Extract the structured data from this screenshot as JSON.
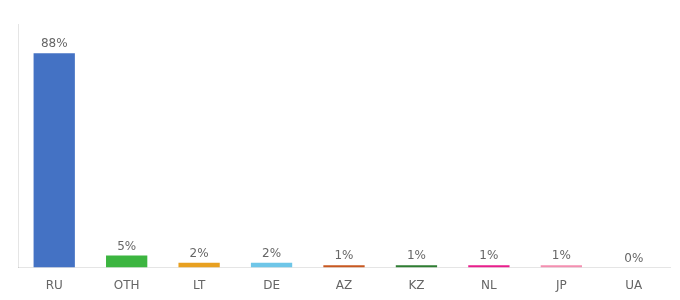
{
  "chart_data": {
    "type": "bar",
    "categories": [
      "RU",
      "OTH",
      "LT",
      "DE",
      "AZ",
      "KZ",
      "NL",
      "JP",
      "UA"
    ],
    "values": [
      88,
      5,
      2,
      2,
      1,
      1,
      1,
      1,
      0
    ],
    "value_labels": [
      "88%",
      "5%",
      "2%",
      "2%",
      "1%",
      "1%",
      "1%",
      "1%",
      "0%"
    ],
    "data_labels": true,
    "colors": [
      "#4472C4",
      "#3CB540",
      "#E8A020",
      "#6EC6E8",
      "#C85820",
      "#2E7D32",
      "#E91E8C",
      "#F48FB1",
      "#F48FB1"
    ],
    "ylim": [
      0,
      100
    ],
    "tick_labels": "x",
    "grid": false
  }
}
